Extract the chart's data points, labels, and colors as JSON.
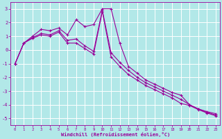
{
  "xlabel": "Windchill (Refroidissement éolien,°C)",
  "background_color": "#b2e8e8",
  "grid_color": "#ffffff",
  "line_color": "#990099",
  "xlim": [
    -0.5,
    23.5
  ],
  "ylim": [
    -5.5,
    3.5
  ],
  "yticks": [
    -5,
    -4,
    -3,
    -2,
    -1,
    0,
    1,
    2,
    3
  ],
  "xticks": [
    0,
    1,
    2,
    3,
    4,
    5,
    6,
    7,
    8,
    9,
    10,
    11,
    12,
    13,
    14,
    15,
    16,
    17,
    18,
    19,
    20,
    21,
    22,
    23
  ],
  "xticklabels": [
    "0",
    "1",
    "2",
    "3",
    "4",
    "5",
    "6",
    "7",
    "8",
    "9",
    "10",
    "11",
    "12",
    "13",
    "14",
    "15",
    "16",
    "17",
    "18",
    "19",
    "20",
    "21",
    "22",
    "23"
  ],
  "series1_x": [
    0,
    1,
    2,
    3,
    4,
    5,
    6,
    7,
    8,
    9,
    10,
    11,
    12,
    13,
    14,
    15,
    16,
    17,
    18,
    19,
    20,
    21,
    22,
    23
  ],
  "series1_y": [
    -1.0,
    0.5,
    1.0,
    1.5,
    1.4,
    1.6,
    1.1,
    2.2,
    1.7,
    1.85,
    3.0,
    3.0,
    0.5,
    -1.2,
    -1.7,
    -2.2,
    -2.5,
    -2.8,
    -3.1,
    -3.3,
    -4.0,
    -4.3,
    -4.5,
    -4.65
  ],
  "series2_x": [
    0,
    1,
    2,
    3,
    4,
    5,
    6,
    7,
    8,
    9,
    10,
    11,
    12,
    13,
    14,
    15,
    16,
    17,
    18,
    19,
    20,
    21,
    22,
    23
  ],
  "series2_y": [
    -1.0,
    0.5,
    0.9,
    1.2,
    1.1,
    1.4,
    0.7,
    0.8,
    0.3,
    -0.1,
    2.9,
    -0.2,
    -0.9,
    -1.5,
    -2.0,
    -2.4,
    -2.7,
    -3.0,
    -3.3,
    -3.6,
    -4.0,
    -4.3,
    -4.55,
    -4.75
  ],
  "series3_x": [
    0,
    1,
    2,
    3,
    4,
    5,
    6,
    7,
    8,
    9,
    10,
    11,
    12,
    13,
    14,
    15,
    16,
    17,
    18,
    19,
    20,
    21,
    22,
    23
  ],
  "series3_y": [
    -1.0,
    0.5,
    0.85,
    1.1,
    1.0,
    1.3,
    0.5,
    0.5,
    0.1,
    -0.3,
    2.8,
    -0.5,
    -1.2,
    -1.8,
    -2.2,
    -2.6,
    -2.9,
    -3.2,
    -3.5,
    -3.9,
    -4.05,
    -4.35,
    -4.6,
    -4.8
  ]
}
